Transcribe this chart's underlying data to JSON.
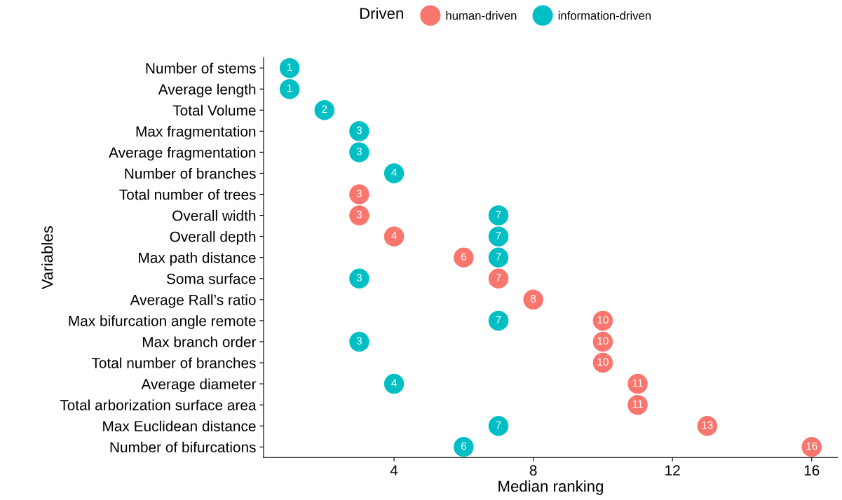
{
  "chart_data": {
    "type": "scatter",
    "orientation": "horizontal",
    "xlabel": "Median ranking",
    "ylabel": "Variables",
    "legend_title": "Driven",
    "legend": "top",
    "grid": false,
    "marker": "circle",
    "data_labels": true,
    "categories": [
      "Number of stems",
      "Average length",
      "Total Volume",
      "Max fragmentation",
      "Average fragmentation",
      "Number of branches",
      "Total number of trees",
      "Overall width",
      "Overall depth",
      "Max path distance",
      "Soma surface",
      "Average Rall’s ratio",
      "Max bifurcation angle remote",
      "Max branch order",
      "Total number of branches",
      "Average diameter",
      "Total arborization surface area",
      "Max Euclidean distance",
      "Number of bifurcations"
    ],
    "xlim": [
      0.25,
      16.75
    ],
    "xticks": [
      4,
      8,
      12,
      16
    ],
    "series": [
      {
        "name": "human-driven",
        "color": "#f8766d",
        "values": [
          null,
          null,
          null,
          null,
          null,
          null,
          3,
          3,
          4,
          6,
          7,
          8,
          10,
          10,
          10,
          11,
          11,
          13,
          16
        ]
      },
      {
        "name": "information-driven",
        "color": "#00bfc4",
        "values": [
          1,
          1,
          2,
          3,
          3,
          4,
          null,
          7,
          7,
          7,
          3,
          null,
          7,
          3,
          null,
          4,
          null,
          7,
          6
        ]
      }
    ]
  }
}
